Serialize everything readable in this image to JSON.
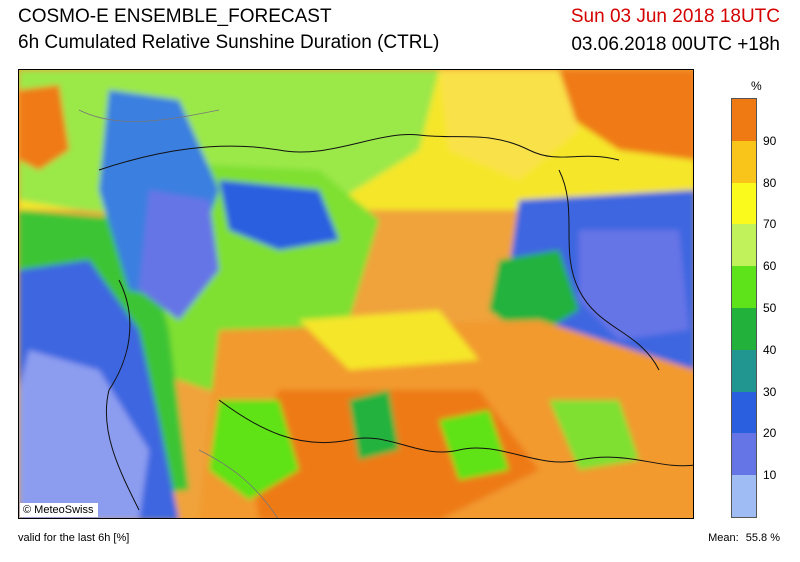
{
  "header": {
    "title": "COSMO-E ENSEMBLE_FORECAST",
    "subtitle": "6h Cumulated Relative Sunshine Duration (CTRL)",
    "valid_time": "Sun 03 Jun 2018 18UTC",
    "run_time": "03.06.2018 00UTC +18h"
  },
  "map": {
    "credit": "© MeteoSwiss"
  },
  "legend": {
    "unit": "%",
    "ticks": [
      "90",
      "80",
      "70",
      "60",
      "50",
      "40",
      "30",
      "20",
      "10"
    ],
    "classes": [
      {
        "from": 0,
        "to": 10,
        "color": "#9fbcf5"
      },
      {
        "from": 10,
        "to": 20,
        "color": "#6675e6"
      },
      {
        "from": 20,
        "to": 30,
        "color": "#2a5fe0"
      },
      {
        "from": 30,
        "to": 40,
        "color": "#219590"
      },
      {
        "from": 40,
        "to": 50,
        "color": "#22b23c"
      },
      {
        "from": 50,
        "to": 60,
        "color": "#5ee219"
      },
      {
        "from": 60,
        "to": 70,
        "color": "#c1f25c"
      },
      {
        "from": 70,
        "to": 80,
        "color": "#fafa1c"
      },
      {
        "from": 80,
        "to": 90,
        "color": "#f9c51b"
      },
      {
        "from": 90,
        "to": 100,
        "color": "#ef7a14"
      }
    ]
  },
  "footer": {
    "validity": "valid for the last 6h [%]",
    "mean_label": "Mean:",
    "mean_value": "55.8 %"
  }
}
